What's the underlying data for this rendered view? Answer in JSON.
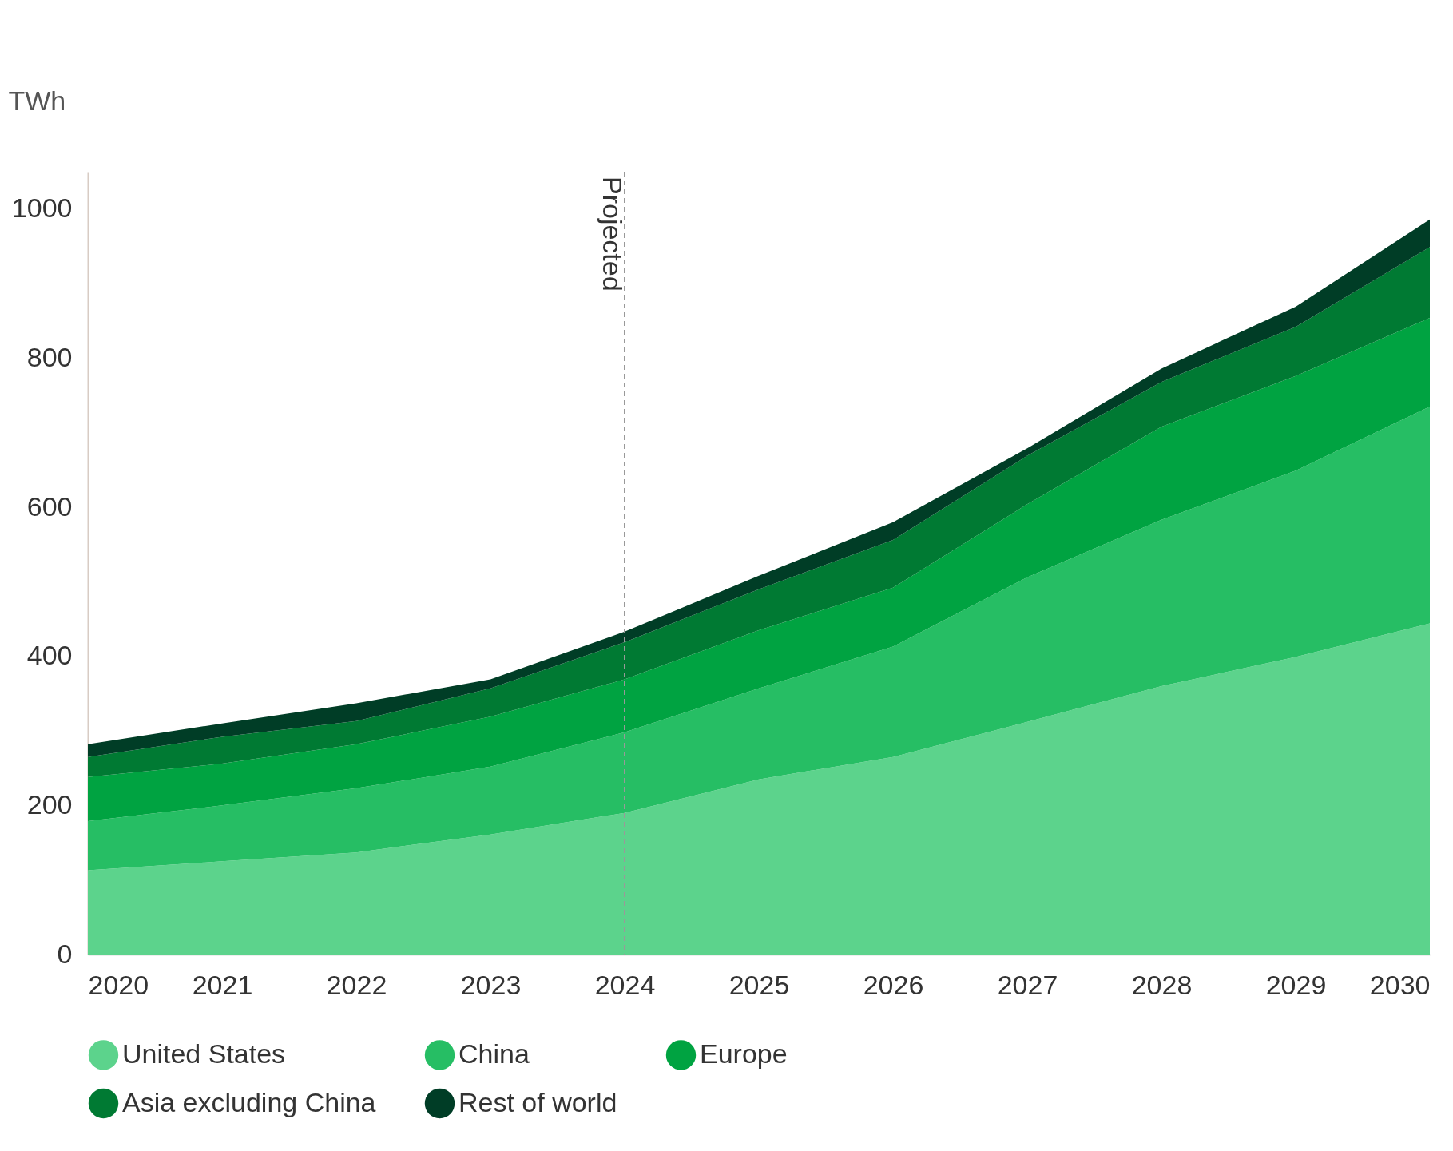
{
  "chart_data": {
    "type": "area",
    "stacked": true,
    "ylabel": "TWh",
    "x": [
      2020,
      2021,
      2022,
      2023,
      2024,
      2025,
      2026,
      2027,
      2028,
      2029,
      2030
    ],
    "series": [
      {
        "name": "United States",
        "color": "#5cd38c",
        "values": [
          113,
          125,
          137,
          161,
          190,
          235,
          265,
          312,
          360,
          399,
          444
        ]
      },
      {
        "name": "China",
        "color": "#26be64",
        "values": [
          66,
          75,
          86,
          91,
          108,
          122,
          148,
          194,
          223,
          250,
          291
        ]
      },
      {
        "name": "Europe",
        "color": "#00a341",
        "values": [
          59,
          56,
          59,
          67,
          71,
          78,
          79,
          98,
          125,
          127,
          119
        ]
      },
      {
        "name": "Asia excluding China",
        "color": "#007a33",
        "values": [
          27,
          36,
          31,
          38,
          50,
          55,
          64,
          65,
          60,
          66,
          95
        ]
      },
      {
        "name": "Rest of world",
        "color": "#003d26",
        "values": [
          17,
          18,
          24,
          12,
          14,
          18,
          24,
          10,
          18,
          27,
          37
        ]
      }
    ],
    "xlim": [
      2020,
      2030
    ],
    "xticks": [
      2020,
      2021,
      2022,
      2023,
      2024,
      2025,
      2026,
      2027,
      2028,
      2029,
      2030
    ],
    "ylim": [
      0,
      1050
    ],
    "yticks": [
      0,
      200,
      400,
      600,
      800,
      1000
    ],
    "ref_lines": [
      {
        "axis": "x",
        "value": 2024,
        "label": "Projected",
        "color": "#999999",
        "line_style": "dashed"
      }
    ],
    "grid": false,
    "legend": "bottom"
  }
}
